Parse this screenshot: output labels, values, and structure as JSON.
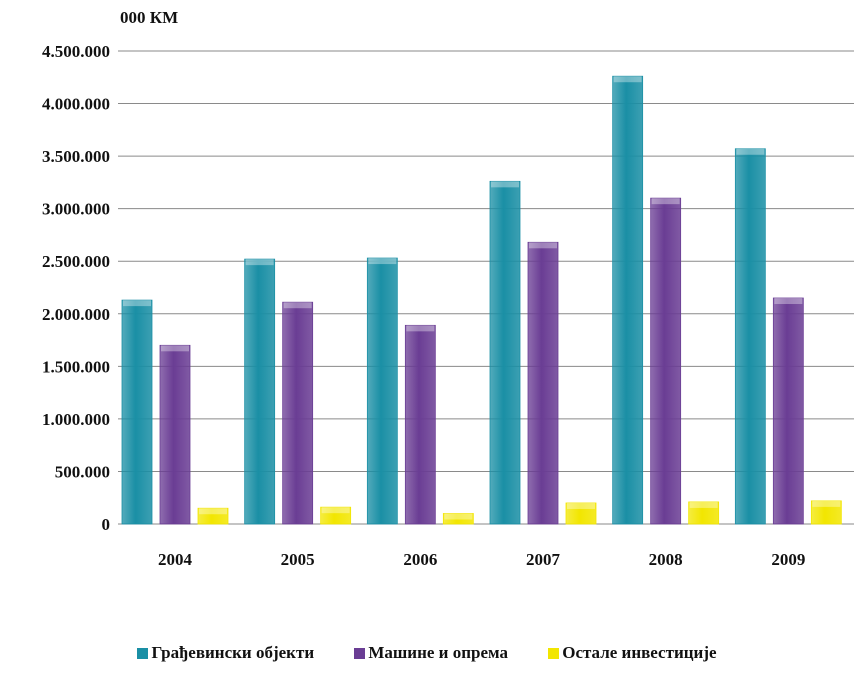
{
  "chart_data": {
    "type": "bar",
    "unit_label": "000 КМ",
    "categories": [
      "2004",
      "2005",
      "2006",
      "2007",
      "2008",
      "2009"
    ],
    "series": [
      {
        "name": "Грађевински објекти",
        "color": "#1a8fa5",
        "values": [
          2130000,
          2520000,
          2530000,
          3260000,
          4260000,
          3570000
        ]
      },
      {
        "name": "Машине и опрема",
        "color": "#6a3d94",
        "values": [
          1700000,
          2110000,
          1890000,
          2680000,
          3100000,
          2150000
        ]
      },
      {
        "name": "Остале инвестиције",
        "color": "#f2e600",
        "values": [
          150000,
          160000,
          100000,
          200000,
          210000,
          220000
        ]
      }
    ],
    "ylim": [
      0,
      4500000
    ],
    "y_ticks": [
      "0",
      "500.000",
      "1.000.000",
      "1.500.000",
      "2.000.000",
      "2.500.000",
      "3.000.000",
      "3.500.000",
      "4.000.000",
      "4.500.000"
    ],
    "grid": true,
    "legend_position": "bottom"
  }
}
